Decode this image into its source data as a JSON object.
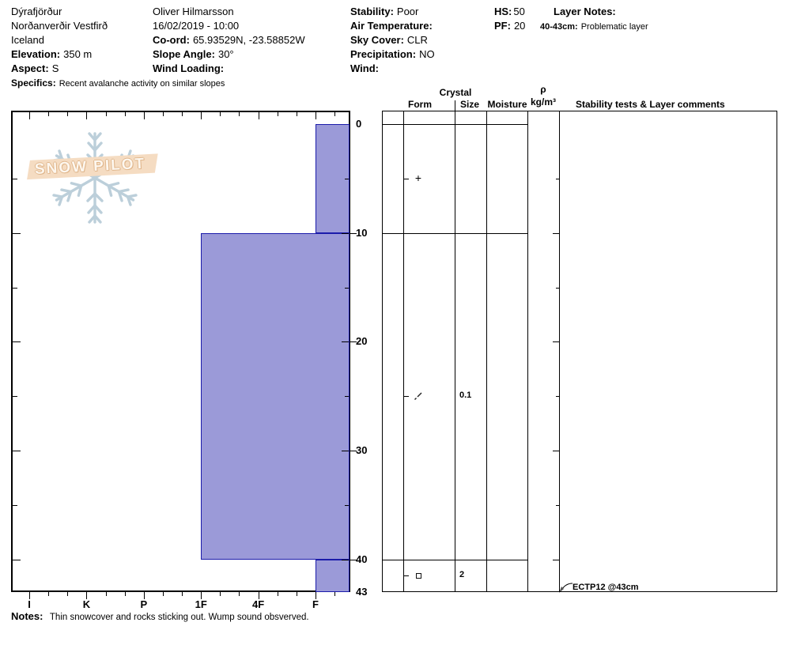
{
  "header": {
    "location_line1": "Dýrafjörður",
    "location_line2": "Norðanverðir Vestfirð",
    "location_line3": "Iceland",
    "elevation_label": "Elevation:",
    "elevation_value": "350 m",
    "aspect_label": "Aspect:",
    "aspect_value": "S",
    "specifics_label": "Specifics:",
    "specifics_value": "Recent avalanche activity on similar slopes",
    "observer": "Oliver Hilmarsson",
    "datetime": "16/02/2019 - 10:00",
    "coord_label": "Co-ord:",
    "coord_value": "65.93529N, -23.58852W",
    "slope_angle_label": "Slope Angle:",
    "slope_angle_value": "30°",
    "wind_loading_label": "Wind Loading:",
    "stability_label": "Stability:",
    "stability_value": "Poor",
    "air_temp_label": "Air Temperature:",
    "sky_cover_label": "Sky Cover:",
    "sky_cover_value": "CLR",
    "precip_label": "Precipitation:",
    "precip_value": "NO",
    "wind_label": "Wind:",
    "hs_label": "HS:",
    "hs_value": "50",
    "pf_label": "PF:",
    "pf_value": "20",
    "layer_notes_label": "Layer Notes:",
    "layer_note_range": "40-43cm:",
    "layer_note_text": "Problematic layer"
  },
  "logo": {
    "text": "SNOW PILOT",
    "banner_color": "#f5dcc2",
    "outline_color": "#e0b78d",
    "snowflake_color": "#bccfda"
  },
  "table": {
    "crystal_header": "Crystal",
    "form_header": "Form",
    "size_header": "Size",
    "moisture_header": "Moisture",
    "density_symbol": "ρ",
    "density_unit": "kg/m³",
    "stability_header": "Stability tests & Layer comments"
  },
  "notes": {
    "label": "Notes:",
    "text": "Thin snowcover and rocks sticking out. Wump sound obsverved."
  },
  "chart_data": {
    "type": "bar",
    "profile": "snow-hardness-profile",
    "title": "SnowPilot snow pit profile",
    "hardness_categories": [
      "I",
      "K",
      "P",
      "1F",
      "4F",
      "F"
    ],
    "depth_axis": {
      "unit": "cm",
      "major_labels": [
        0,
        10,
        20,
        30,
        40,
        43
      ],
      "minor_ticks": [
        5,
        15,
        25,
        35
      ],
      "max": 43
    },
    "layers": [
      {
        "top_cm": 0,
        "bottom_cm": 10,
        "hardness": "F",
        "grain_form": "PP",
        "form_symbol": "+",
        "grain_size_mm": "",
        "moisture": "",
        "density": ""
      },
      {
        "top_cm": 10,
        "bottom_cm": 40,
        "hardness": "1F",
        "grain_form": "DF",
        "form_symbol": "df-slash",
        "grain_size_mm": "0.1",
        "moisture": "",
        "density": ""
      },
      {
        "top_cm": 40,
        "bottom_cm": 43,
        "hardness": "F",
        "grain_form": "FC",
        "form_symbol": "□",
        "grain_size_mm": "2",
        "moisture": "",
        "density": ""
      }
    ],
    "bar_fill": "#9b9ad8",
    "bar_border": "#1b1baa",
    "stability_tests": [
      {
        "text": "ECTP12 @43cm",
        "depth_cm": 43
      }
    ]
  }
}
